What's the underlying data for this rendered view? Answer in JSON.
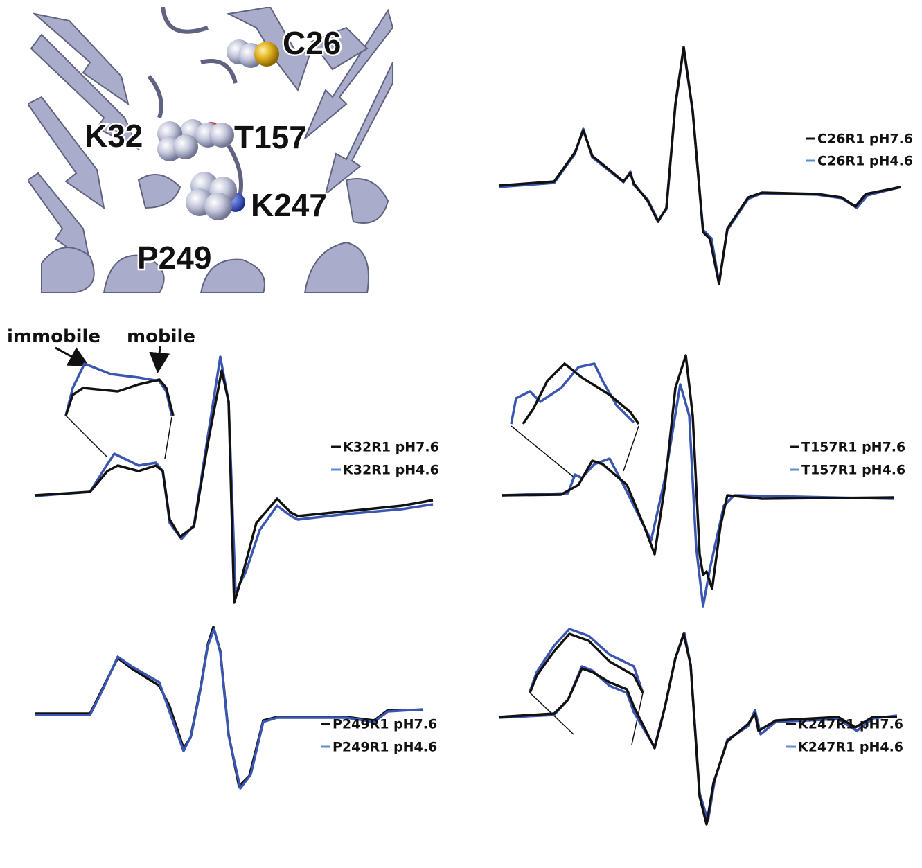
{
  "structure": {
    "residues": [
      "C26",
      "T157",
      "K32",
      "K247",
      "P249"
    ]
  },
  "annotations": {
    "immobile": "immobile",
    "mobile": "mobile"
  },
  "panels": [
    {
      "legend": [
        "C26R1 pH7.6",
        "C26R1 pH4.6"
      ]
    },
    {
      "legend": [
        "K32R1 pH7.6",
        "K32R1 pH4.6"
      ]
    },
    {
      "legend": [
        "T157R1 pH7.6",
        "T157R1 pH4.6"
      ]
    },
    {
      "legend": [
        "P249R1 pH7.6",
        "P249R1 pH4.6"
      ]
    },
    {
      "legend": [
        "K247R1 pH7.6",
        "K247R1 pH4.6"
      ]
    }
  ]
}
